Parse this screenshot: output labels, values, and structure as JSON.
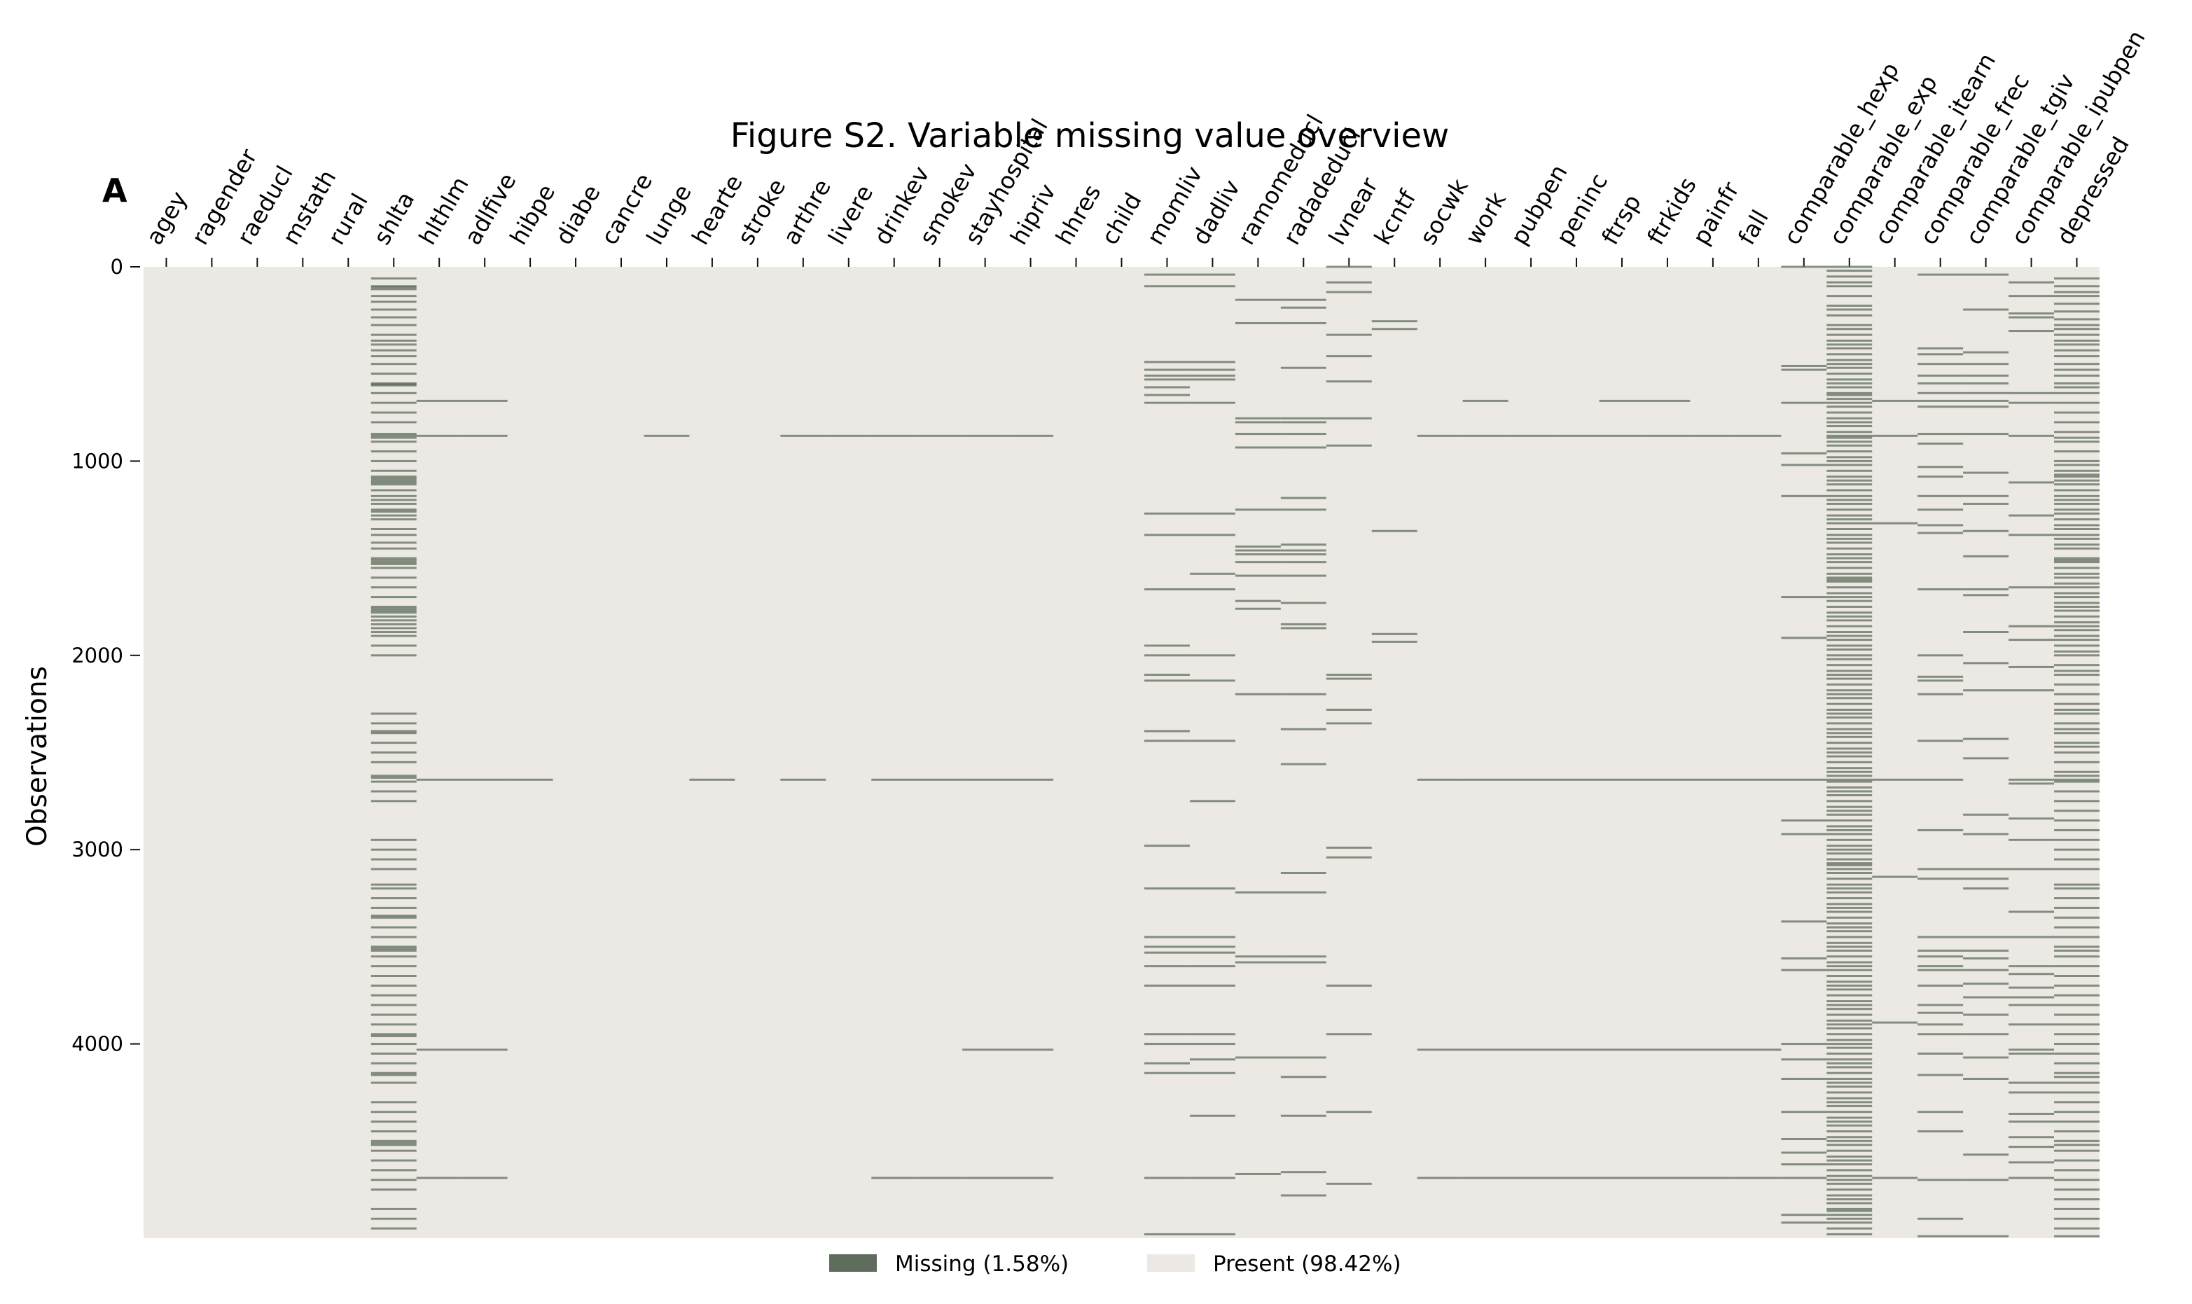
{
  "chart_data": {
    "type": "heatmap",
    "title": "Figure S2. Variable missing value overview",
    "panel_label": "A",
    "ylabel": "Observations",
    "y_range": [
      0,
      5000
    ],
    "y_ticks": [
      0,
      1000,
      2000,
      3000,
      4000
    ],
    "n_rows": 5000,
    "grid": false,
    "legend_position": "bottom-center",
    "colors": {
      "missing": "#5f6e5c",
      "present": "#ece9e4"
    },
    "legend": [
      {
        "key": "missing",
        "label": "Missing  (1.58%)"
      },
      {
        "key": "present",
        "label": "Present  (98.42%)"
      }
    ],
    "columns": [
      "agey",
      "ragender",
      "raeducl",
      "mstath",
      "rural",
      "shlta",
      "hlthlm",
      "adlfive",
      "hibpe",
      "diabe",
      "cancre",
      "lunge",
      "hearte",
      "stroke",
      "arthre",
      "livere",
      "drinkev",
      "smokev",
      "stayhospital",
      "hipriv",
      "hhres",
      "child",
      "momliv",
      "dadliv",
      "ramomeducl",
      "radadeducl",
      "lvnear",
      "kcntf",
      "socwk",
      "work",
      "pubpen",
      "peninc",
      "ftrsp",
      "ftrkids",
      "painfr",
      "fall",
      "comparable_hexp",
      "comparable_exp",
      "comparable_itearn",
      "comparable_frec",
      "comparable_tgiv",
      "comparable_ipubpen",
      "depressed"
    ],
    "missing_rows": {
      "shlta": [
        60,
        100,
        105,
        115,
        150,
        180,
        220,
        260,
        300,
        350,
        380,
        400,
        430,
        460,
        500,
        550,
        600,
        605,
        610,
        650,
        700,
        750,
        800,
        860,
        870,
        880,
        900,
        950,
        1000,
        1050,
        1080,
        1090,
        1100,
        1110,
        1120,
        1150,
        1180,
        1200,
        1220,
        1250,
        1260,
        1280,
        1300,
        1350,
        1380,
        1420,
        1450,
        1500,
        1510,
        1520,
        1530,
        1550,
        1600,
        1650,
        1700,
        1750,
        1760,
        1770,
        1780,
        1800,
        1820,
        1840,
        1860,
        1880,
        1900,
        1950,
        2000,
        2300,
        2350,
        2390,
        2400,
        2450,
        2500,
        2550,
        2620,
        2630,
        2650,
        2700,
        2750,
        2950,
        3000,
        3050,
        3100,
        3180,
        3200,
        3250,
        3300,
        3340,
        3350,
        3400,
        3450,
        3500,
        3510,
        3520,
        3550,
        3600,
        3650,
        3700,
        3750,
        3800,
        3850,
        3900,
        3950,
        3960,
        4000,
        4050,
        4100,
        4150,
        4160,
        4200,
        4300,
        4350,
        4400,
        4450,
        4500,
        4510,
        4520,
        4550,
        4600,
        4650,
        4700,
        4750,
        4850,
        4900,
        4950
      ],
      "hlthlm": [
        690,
        870,
        2640,
        4030,
        4690
      ],
      "adlfive": [
        690,
        870,
        2640,
        4030,
        4690
      ],
      "hibpe": [
        2640
      ],
      "lunge": [
        870
      ],
      "hearte": [
        2640
      ],
      "arthre": [
        870,
        2640
      ],
      "livere": [
        870
      ],
      "drinkev": [
        870,
        2640,
        4690
      ],
      "smokev": [
        870,
        2640,
        4690
      ],
      "stayhospital": [
        870,
        2640,
        4030,
        4690
      ],
      "hipriv": [
        870,
        2640,
        4030,
        4690
      ],
      "momliv": [
        40,
        100,
        490,
        530,
        560,
        580,
        620,
        660,
        700,
        1270,
        1380,
        1660,
        1950,
        2000,
        2100,
        2130,
        2390,
        2440,
        2980,
        3200,
        3450,
        3500,
        3530,
        3600,
        3700,
        3950,
        4000,
        4100,
        4150,
        4690,
        4980
      ],
      "dadliv": [
        40,
        100,
        490,
        530,
        560,
        580,
        700,
        1270,
        1380,
        1580,
        1660,
        2000,
        2130,
        2440,
        2750,
        3200,
        3450,
        3500,
        3530,
        3600,
        3700,
        3950,
        4000,
        4080,
        4150,
        4370,
        4690,
        4980
      ],
      "ramomeducl": [
        170,
        290,
        780,
        800,
        860,
        930,
        1250,
        1440,
        1460,
        1480,
        1520,
        1590,
        1720,
        1760,
        2200,
        3220,
        3550,
        3580,
        4070,
        4670
      ],
      "radadeducl": [
        170,
        210,
        290,
        520,
        780,
        800,
        860,
        930,
        1190,
        1250,
        1430,
        1460,
        1480,
        1520,
        1590,
        1730,
        1840,
        1860,
        2200,
        2380,
        2560,
        3120,
        3220,
        3550,
        3580,
        4070,
        4170,
        4370,
        4660,
        4780
      ],
      "lvnear": [
        0,
        80,
        130,
        350,
        460,
        590,
        780,
        920,
        2100,
        2120,
        2280,
        2350,
        2990,
        3040,
        3700,
        3950,
        4350,
        4720
      ],
      "kcntf": [
        280,
        320,
        1360,
        1890,
        1930
      ],
      "socwk": [
        870,
        2640,
        4030,
        4690
      ],
      "work": [
        690,
        870,
        2640,
        4030,
        4690
      ],
      "pubpen": [
        870,
        2640,
        4030,
        4690
      ],
      "peninc": [
        870,
        2640,
        4030,
        4690
      ],
      "ftrsp": [
        690,
        870,
        2640,
        4030,
        4690
      ],
      "ftrkids": [
        690,
        870,
        2640,
        4030,
        4690
      ],
      "painfr": [
        870,
        2640,
        4030,
        4690
      ],
      "fall": [
        870,
        2640,
        4030,
        4690
      ],
      "comparable_hexp": [
        0,
        510,
        530,
        700,
        960,
        1020,
        1180,
        1700,
        1910,
        2640,
        2850,
        2920,
        3370,
        3560,
        3620,
        4000,
        4080,
        4180,
        4350,
        4490,
        4560,
        4620,
        4690,
        4880,
        4920
      ],
      "comparable_exp": [
        0,
        20,
        50,
        80,
        100,
        150,
        200,
        220,
        250,
        300,
        320,
        350,
        380,
        400,
        420,
        450,
        480,
        500,
        520,
        550,
        580,
        600,
        620,
        650,
        660,
        680,
        700,
        720,
        750,
        780,
        800,
        820,
        850,
        870,
        880,
        900,
        920,
        950,
        980,
        1000,
        1020,
        1050,
        1080,
        1100,
        1120,
        1150,
        1180,
        1200,
        1220,
        1250,
        1280,
        1300,
        1320,
        1350,
        1380,
        1400,
        1420,
        1450,
        1480,
        1500,
        1520,
        1550,
        1580,
        1600,
        1610,
        1620,
        1650,
        1680,
        1700,
        1720,
        1750,
        1780,
        1800,
        1820,
        1850,
        1880,
        1900,
        1920,
        1950,
        1970,
        2000,
        2020,
        2050,
        2080,
        2100,
        2120,
        2150,
        2180,
        2200,
        2220,
        2250,
        2280,
        2300,
        2320,
        2350,
        2380,
        2400,
        2420,
        2450,
        2480,
        2500,
        2520,
        2550,
        2580,
        2600,
        2620,
        2640,
        2650,
        2680,
        2700,
        2720,
        2750,
        2780,
        2800,
        2820,
        2850,
        2880,
        2900,
        2920,
        2950,
        2980,
        3000,
        3020,
        3050,
        3070,
        3080,
        3100,
        3120,
        3150,
        3180,
        3200,
        3220,
        3250,
        3280,
        3300,
        3320,
        3350,
        3380,
        3400,
        3420,
        3450,
        3480,
        3500,
        3520,
        3550,
        3580,
        3600,
        3620,
        3650,
        3680,
        3700,
        3720,
        3750,
        3780,
        3800,
        3820,
        3850,
        3880,
        3900,
        3920,
        3950,
        3980,
        4000,
        4020,
        4050,
        4080,
        4100,
        4120,
        4150,
        4180,
        4200,
        4220,
        4250,
        4280,
        4300,
        4320,
        4350,
        4380,
        4400,
        4420,
        4450,
        4480,
        4500,
        4520,
        4550,
        4580,
        4600,
        4620,
        4650,
        4680,
        4700,
        4720,
        4750,
        4780,
        4800,
        4820,
        4850,
        4860,
        4880,
        4900,
        4920,
        4950,
        4980
      ],
      "comparable_itearn": [
        690,
        870,
        1320,
        2640,
        3140,
        3890,
        4690
      ],
      "comparable_frec": [
        40,
        420,
        450,
        500,
        560,
        600,
        650,
        690,
        720,
        860,
        910,
        1030,
        1080,
        1180,
        1250,
        1330,
        1370,
        1660,
        2000,
        2110,
        2130,
        2200,
        2440,
        2640,
        2900,
        3100,
        3150,
        3450,
        3520,
        3550,
        3600,
        3620,
        3700,
        3800,
        3840,
        3900,
        3950,
        4050,
        4160,
        4350,
        4450,
        4700,
        4900,
        4990
      ],
      "comparable_tgiv": [
        40,
        220,
        440,
        500,
        560,
        600,
        650,
        690,
        720,
        860,
        1060,
        1180,
        1220,
        1360,
        1490,
        1660,
        1690,
        1880,
        2040,
        2180,
        2430,
        2530,
        2820,
        2920,
        3100,
        3150,
        3200,
        3450,
        3520,
        3560,
        3620,
        3690,
        3760,
        3850,
        3950,
        4070,
        4180,
        4570,
        4700,
        4990
      ],
      "comparable_ipubpen": [
        80,
        150,
        240,
        260,
        330,
        650,
        700,
        870,
        1110,
        1280,
        1380,
        1650,
        1850,
        1920,
        2060,
        2180,
        2640,
        2660,
        2840,
        2950,
        3100,
        3320,
        3450,
        3600,
        3640,
        3710,
        3760,
        3800,
        3900,
        4030,
        4050,
        4200,
        4250,
        4360,
        4400,
        4480,
        4530,
        4610,
        4690
      ],
      "depressed": [
        60,
        100,
        130,
        150,
        190,
        230,
        270,
        300,
        320,
        350,
        380,
        400,
        430,
        460,
        500,
        530,
        560,
        600,
        620,
        650,
        700,
        750,
        800,
        850,
        880,
        900,
        950,
        1000,
        1020,
        1050,
        1070,
        1080,
        1100,
        1120,
        1150,
        1180,
        1200,
        1220,
        1250,
        1270,
        1300,
        1330,
        1350,
        1380,
        1400,
        1430,
        1450,
        1500,
        1510,
        1520,
        1550,
        1580,
        1600,
        1630,
        1650,
        1680,
        1700,
        1730,
        1750,
        1770,
        1800,
        1830,
        1850,
        1870,
        1900,
        1920,
        1950,
        1980,
        2000,
        2050,
        2080,
        2100,
        2150,
        2200,
        2250,
        2280,
        2300,
        2350,
        2380,
        2400,
        2450,
        2470,
        2500,
        2550,
        2600,
        2620,
        2640,
        2650,
        2700,
        2750,
        2800,
        2850,
        2900,
        2950,
        3000,
        3050,
        3100,
        3180,
        3200,
        3250,
        3300,
        3350,
        3400,
        3450,
        3500,
        3520,
        3550,
        3600,
        3650,
        3700,
        3750,
        3800,
        3850,
        3900,
        3950,
        4000,
        4050,
        4100,
        4150,
        4170,
        4200,
        4250,
        4300,
        4350,
        4400,
        4450,
        4500,
        4520,
        4550,
        4600,
        4650,
        4700,
        4750,
        4800,
        4850,
        4900,
        4950,
        4990
      ]
    }
  }
}
